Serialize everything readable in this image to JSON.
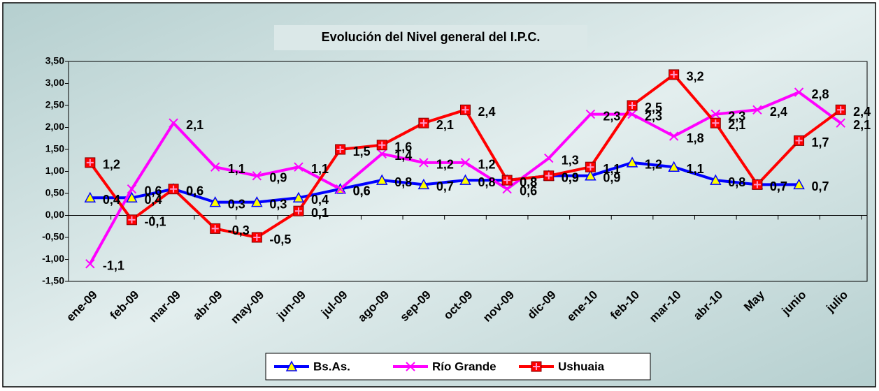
{
  "chart_data": {
    "type": "line",
    "title": "Evolución del Nivel general del I.P.C.",
    "categories": [
      "ene-09",
      "feb-09",
      "mar-09",
      "abr-09",
      "may-09",
      "jun-09",
      "jul-09",
      "ago-09",
      "sep-09",
      "oct-09",
      "nov-09",
      "dic-09",
      "ene-10",
      "feb-10",
      "mar-10",
      "abr-10",
      "May",
      "junio",
      "julio"
    ],
    "series": [
      {
        "name": "Bs.As.",
        "color": "#0000ff",
        "marker": "triangle",
        "values": [
          0.4,
          0.4,
          0.6,
          0.3,
          0.3,
          0.4,
          0.6,
          0.8,
          0.7,
          0.8,
          0.8,
          0.9,
          0.9,
          1.2,
          1.1,
          0.8,
          0.7,
          0.7,
          null
        ],
        "value_labels": [
          "0,4",
          "0,4",
          "0,6",
          "0,3",
          "0,3",
          "0,4",
          "0,6",
          "0,8",
          "0,7",
          "0,8",
          "0,8",
          "0,9",
          "0,9",
          "1,2",
          "1,1",
          "0,8",
          "0,7",
          "0,7",
          null
        ]
      },
      {
        "name": "Río Grande",
        "color": "#ff00ff",
        "marker": "x",
        "values": [
          -1.1,
          0.6,
          2.1,
          1.1,
          0.9,
          1.1,
          0.6,
          1.4,
          1.2,
          1.2,
          0.6,
          1.3,
          2.3,
          2.3,
          1.8,
          2.3,
          2.4,
          2.8,
          2.1
        ],
        "value_labels": [
          "-1,1",
          "0,6",
          "2,1",
          "1,1",
          "0,9",
          "1,1",
          "0,6",
          "1,4",
          "1,2",
          "1,2",
          "0,6",
          "1,3",
          "2,3",
          "2,3",
          "1,8",
          "2,3",
          "2,4",
          "2,8",
          "2,1"
        ]
      },
      {
        "name": "Ushuaia",
        "color": "#ff0000",
        "marker": "square",
        "values": [
          1.2,
          -0.1,
          0.6,
          -0.3,
          -0.5,
          0.1,
          1.5,
          1.6,
          2.1,
          2.4,
          0.8,
          0.9,
          1.1,
          2.5,
          3.2,
          2.1,
          0.7,
          1.7,
          2.4
        ],
        "value_labels": [
          "1,2",
          "-0,1",
          "0,6",
          "-0,3",
          "-0,5",
          "0,1",
          "1,5",
          "1,6",
          "2,1",
          "2,4",
          "0,8",
          "0,9",
          "1,1",
          "2,5",
          "3,2",
          "2,1",
          "0,7",
          "1,7",
          "2,4"
        ]
      }
    ],
    "ylim": [
      -1.5,
      3.5
    ],
    "yticks": [
      {
        "value": -1.5,
        "label": "-1,50"
      },
      {
        "value": -1,
        "label": "-1,00"
      },
      {
        "value": -0.5,
        "label": "-0,50"
      },
      {
        "value": 0,
        "label": "0,00"
      },
      {
        "value": 0.5,
        "label": "0,50"
      },
      {
        "value": 1,
        "label": "1,00"
      },
      {
        "value": 1.5,
        "label": "1,50"
      },
      {
        "value": 2,
        "label": "2,00"
      },
      {
        "value": 2.5,
        "label": "2,50"
      },
      {
        "value": 3,
        "label": "3,00"
      },
      {
        "value": 3.5,
        "label": "3,50"
      }
    ],
    "grid": false,
    "legend": "bottom"
  }
}
